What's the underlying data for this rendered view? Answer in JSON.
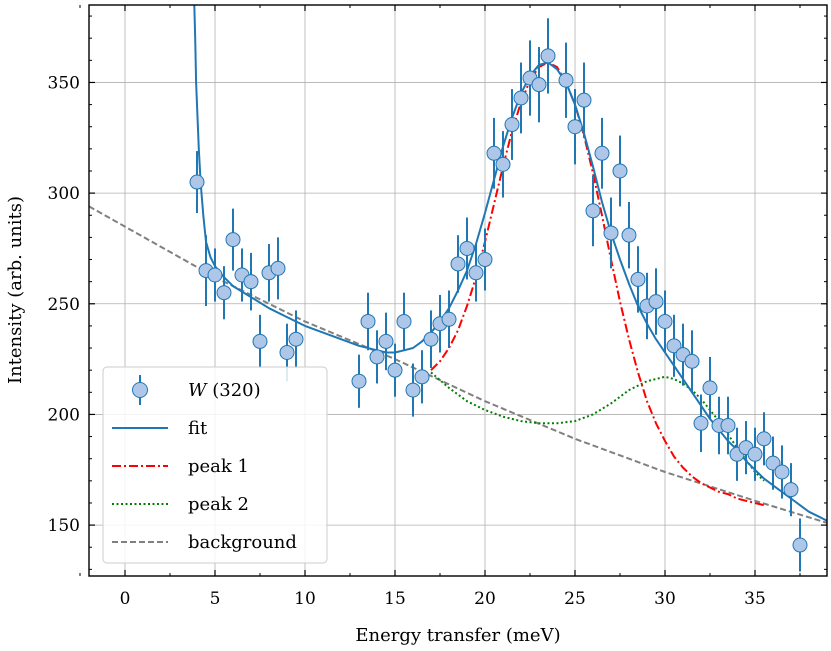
{
  "chart_data": {
    "type": "scatter",
    "xlabel": "Energy transfer (meV)",
    "ylabel": "Intensity (arb. units)",
    "xlim": [
      -2,
      39
    ],
    "ylim": [
      127,
      385
    ],
    "xticks": [
      0,
      5,
      10,
      15,
      20,
      25,
      30,
      35
    ],
    "yticks": [
      150,
      200,
      250,
      300,
      350
    ],
    "xtick_labels": [
      "0",
      "5",
      "10",
      "15",
      "20",
      "25",
      "30",
      "35"
    ],
    "ytick_labels": [
      "150",
      "200",
      "250",
      "300",
      "350"
    ],
    "grid": true,
    "legend_position": "lower-left",
    "series": [
      {
        "name_italic": "W",
        "name_rest": " (320)",
        "kind": "points_with_errorbars",
        "color": "#aec7e8",
        "edge_color": "#1f77b4",
        "x": [
          4.0,
          4.5,
          5.0,
          5.5,
          6.0,
          6.5,
          7.0,
          7.5,
          8.0,
          8.5,
          9.0,
          9.5,
          13.0,
          13.5,
          14.0,
          14.5,
          15.0,
          15.5,
          16.0,
          16.5,
          17.0,
          17.5,
          18.0,
          18.5,
          19.0,
          19.5,
          20.0,
          20.5,
          21.0,
          21.5,
          22.0,
          22.5,
          23.0,
          23.5,
          24.5,
          25.0,
          25.5,
          26.0,
          26.5,
          27.0,
          27.5,
          28.0,
          28.5,
          29.0,
          29.5,
          30.0,
          30.5,
          31.0,
          31.5,
          32.0,
          32.5,
          33.0,
          33.5,
          34.0,
          34.5,
          35.0,
          35.5,
          36.0,
          36.5,
          37.0,
          37.5
        ],
        "y": [
          305,
          265,
          263,
          255,
          279,
          263,
          260,
          233,
          264,
          266,
          228,
          234,
          215,
          242,
          226,
          233,
          220,
          242,
          211,
          217,
          234,
          241,
          243,
          268,
          275,
          264,
          270,
          318,
          313,
          331,
          343,
          352,
          349,
          362,
          351,
          330,
          342,
          292,
          318,
          282,
          310,
          281,
          261,
          249,
          251,
          242,
          231,
          227,
          224,
          196,
          212,
          195,
          195,
          182,
          185,
          182,
          189,
          178,
          174,
          166,
          141
        ],
        "yerr": [
          14,
          16,
          12,
          12,
          14,
          12,
          13,
          12,
          13,
          14,
          13,
          13,
          12,
          13,
          12,
          13,
          12,
          13,
          12,
          12,
          13,
          13,
          13,
          13,
          14,
          13,
          14,
          16,
          15,
          16,
          16,
          17,
          17,
          17,
          17,
          17,
          17,
          16,
          16,
          16,
          16,
          15,
          15,
          15,
          15,
          14,
          14,
          14,
          14,
          13,
          14,
          13,
          13,
          12,
          12,
          12,
          12,
          12,
          12,
          12,
          12
        ]
      },
      {
        "name": "fit",
        "kind": "line",
        "style": "solid",
        "color": "#1f77b4",
        "x": [
          3.85,
          3.9,
          3.95,
          4.0,
          4.1,
          4.2,
          4.35,
          4.5,
          4.75,
          5.0,
          5.5,
          6.0,
          7.0,
          8.0,
          9.0,
          10.0,
          11.0,
          12.0,
          13.0,
          14.0,
          14.5,
          15.0,
          15.5,
          16.0,
          16.5,
          17.0,
          17.5,
          18.0,
          18.5,
          19.0,
          19.5,
          20.0,
          20.5,
          21.0,
          21.5,
          22.0,
          22.5,
          23.0,
          23.5,
          24.0,
          24.5,
          25.0,
          25.5,
          26.0,
          26.5,
          27.0,
          27.5,
          28.0,
          28.5,
          29.0,
          29.5,
          30.0,
          30.5,
          31.0,
          31.5,
          32.0,
          32.5,
          33.0,
          33.5,
          34.0,
          34.5,
          35.0,
          35.5,
          36.0,
          36.5,
          37.0,
          37.5,
          38.0,
          38.5,
          39.0
        ],
        "y": [
          385,
          370,
          350,
          340,
          320,
          305,
          290,
          278,
          271,
          267,
          262,
          258,
          253,
          248,
          244,
          240,
          237,
          234,
          231,
          229,
          228,
          228,
          229,
          230,
          233,
          237,
          242,
          248,
          256,
          265,
          277,
          291,
          306,
          321,
          334,
          345,
          353,
          358,
          359,
          356,
          350,
          340,
          327,
          312,
          296,
          282,
          270,
          259,
          249,
          241,
          234,
          228,
          222,
          216,
          210,
          204,
          198,
          193,
          188,
          184,
          179,
          175,
          171,
          168,
          165,
          162,
          159,
          156,
          154,
          152
        ]
      },
      {
        "name": "peak 1",
        "kind": "line",
        "style": "dashdot",
        "color": "#ff0000",
        "x": [
          17.0,
          17.5,
          18.0,
          18.5,
          19.0,
          19.5,
          20.0,
          20.5,
          21.0,
          21.5,
          22.0,
          22.5,
          23.0,
          23.5,
          24.0,
          24.5,
          25.0,
          25.5,
          26.0,
          26.5,
          27.0,
          27.5,
          28.0,
          28.5,
          29.0,
          29.5,
          30.0,
          30.5,
          31.0,
          31.5,
          32.0,
          32.5,
          33.0,
          33.5,
          34.0,
          34.5,
          35.0,
          35.5
        ],
        "y": [
          220,
          224,
          230,
          238,
          249,
          262,
          278,
          295,
          312,
          328,
          341,
          351,
          357,
          359,
          357,
          350,
          340,
          326,
          309,
          290,
          270,
          251,
          234,
          219,
          206,
          196,
          188,
          181,
          176,
          172,
          169,
          167,
          165,
          164,
          162,
          161,
          160,
          159
        ]
      },
      {
        "name": "peak 2",
        "kind": "line",
        "style": "dotted",
        "color": "#008000",
        "x": [
          17.0,
          18.0,
          19.0,
          20.0,
          21.0,
          22.0,
          23.0,
          24.0,
          25.0,
          26.0,
          27.0,
          28.0,
          29.0,
          29.5,
          30.0,
          30.5,
          31.0,
          31.5,
          32.0,
          33.0,
          34.0,
          35.0,
          35.5
        ],
        "y": [
          219,
          212,
          206,
          202,
          199,
          197,
          196,
          196,
          197,
          200,
          205,
          211,
          215,
          216,
          217,
          216,
          214,
          211,
          207,
          197,
          185,
          174,
          170
        ]
      },
      {
        "name": "background",
        "kind": "line",
        "style": "dashed",
        "color": "#808080",
        "x": [
          -2,
          5,
          10,
          15,
          20,
          25,
          30,
          35,
          39
        ],
        "y": [
          294,
          262,
          242,
          225,
          206,
          189,
          174,
          161,
          151
        ]
      }
    ]
  }
}
